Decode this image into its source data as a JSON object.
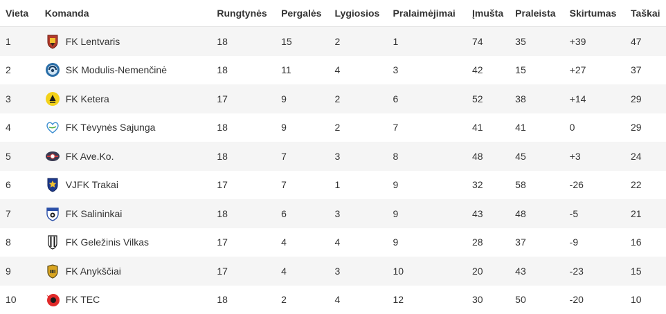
{
  "headers": {
    "position": "Vieta",
    "team": "Komanda",
    "played": "Rungtynės",
    "wins": "Pergalės",
    "draws": "Lygiosios",
    "losses": "Pralaimėjimai",
    "goals_for": "Įmušta",
    "goals_against": "Praleista",
    "goal_diff": "Skirtumas",
    "points": "Taškai"
  },
  "rows": [
    {
      "position": "1",
      "team": "FK Lentvaris",
      "logo_icon": "fk-lentvaris-crest-icon",
      "played": "18",
      "wins": "15",
      "draws": "2",
      "losses": "1",
      "goals_for": "74",
      "goals_against": "35",
      "goal_diff": "+39",
      "points": "47"
    },
    {
      "position": "2",
      "team": "SK Modulis-Nemenčinė",
      "logo_icon": "sk-modulis-crest-icon",
      "played": "18",
      "wins": "11",
      "draws": "4",
      "losses": "3",
      "goals_for": "42",
      "goals_against": "15",
      "goal_diff": "+27",
      "points": "37"
    },
    {
      "position": "3",
      "team": "FK Ketera",
      "logo_icon": "fk-ketera-crest-icon",
      "played": "17",
      "wins": "9",
      "draws": "2",
      "losses": "6",
      "goals_for": "52",
      "goals_against": "38",
      "goal_diff": "+14",
      "points": "29"
    },
    {
      "position": "4",
      "team": "FK Tėvynės Sajunga",
      "logo_icon": "fk-tevynes-sajunga-crest-icon",
      "played": "18",
      "wins": "9",
      "draws": "2",
      "losses": "7",
      "goals_for": "41",
      "goals_against": "41",
      "goal_diff": "0",
      "points": "29"
    },
    {
      "position": "5",
      "team": "FK Ave.Ko.",
      "logo_icon": "fk-aveko-crest-icon",
      "played": "18",
      "wins": "7",
      "draws": "3",
      "losses": "8",
      "goals_for": "48",
      "goals_against": "45",
      "goal_diff": "+3",
      "points": "24"
    },
    {
      "position": "6",
      "team": "VJFK Trakai",
      "logo_icon": "vjfk-trakai-crest-icon",
      "played": "17",
      "wins": "7",
      "draws": "1",
      "losses": "9",
      "goals_for": "32",
      "goals_against": "58",
      "goal_diff": "-26",
      "points": "22"
    },
    {
      "position": "7",
      "team": "FK Salininkai",
      "logo_icon": "fk-salininkai-crest-icon",
      "played": "18",
      "wins": "6",
      "draws": "3",
      "losses": "9",
      "goals_for": "43",
      "goals_against": "48",
      "goal_diff": "-5",
      "points": "21"
    },
    {
      "position": "8",
      "team": "FK Geležinis Vilkas",
      "logo_icon": "fk-gelezinis-vilkas-crest-icon",
      "played": "17",
      "wins": "4",
      "draws": "4",
      "losses": "9",
      "goals_for": "28",
      "goals_against": "37",
      "goal_diff": "-9",
      "points": "16"
    },
    {
      "position": "9",
      "team": "FK Anykščiai",
      "logo_icon": "fk-anyksciai-crest-icon",
      "played": "17",
      "wins": "4",
      "draws": "3",
      "losses": "10",
      "goals_for": "20",
      "goals_against": "43",
      "goal_diff": "-23",
      "points": "15"
    },
    {
      "position": "10",
      "team": "FK TEC",
      "logo_icon": "fk-tec-crest-icon",
      "played": "18",
      "wins": "2",
      "draws": "4",
      "losses": "12",
      "goals_for": "30",
      "goals_against": "50",
      "goal_diff": "-20",
      "points": "10"
    }
  ],
  "colors": {
    "row_stripe": "#f5f5f5",
    "row_plain": "#ffffff",
    "text": "#333333",
    "header_border": "#e3e3e3"
  }
}
